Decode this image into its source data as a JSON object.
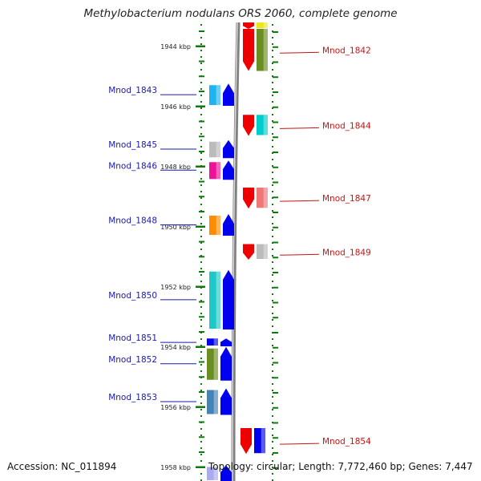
{
  "title": "Methylobacterium nodulans ORS 2060, complete genome",
  "footer": {
    "accession": "Accession: NC_011894",
    "summary": "Topology: circular; Length: 7,772,460 bp; Genes: 7,447"
  },
  "colors": {
    "forward_strand": "#0000ee",
    "reverse_strand": "#ee0000",
    "left_label": "#1a1aaa",
    "right_label": "#cc1111",
    "ruler_tick": "#117711",
    "backbone": "#808080"
  },
  "view": {
    "start_kbp": 1942.46,
    "end_kbp": 1958.46
  },
  "scale": {
    "ticks": [
      {
        "kbp": 1944,
        "label": "1944 kbp"
      },
      {
        "kbp": 1946,
        "label": "1946 kbp"
      },
      {
        "kbp": 1948,
        "label": "1948 kbp"
      },
      {
        "kbp": 1950,
        "label": "1950 kbp"
      },
      {
        "kbp": 1952,
        "label": "1952 kbp"
      },
      {
        "kbp": 1954,
        "label": "1954 kbp"
      },
      {
        "kbp": 1956,
        "label": "1956 kbp"
      },
      {
        "kbp": 1958,
        "label": "1958 kbp"
      }
    ]
  },
  "genes": [
    {
      "name": "",
      "strand": "-",
      "start_kbp": 1942.46,
      "end_kbp": 1943.42,
      "color": "#e8e81a",
      "label_side": "none"
    },
    {
      "name": "Mnod_1842",
      "strand": "-",
      "start_kbp": 1943.42,
      "end_kbp": 1944.82,
      "color": "#6b8e23",
      "label_side": "right"
    },
    {
      "name": "Mnod_1843",
      "strand": "+",
      "start_kbp": 1945.24,
      "end_kbp": 1945.98,
      "color": "#1eb4f0",
      "label_side": "left"
    },
    {
      "name": "Mnod_1844",
      "strand": "-",
      "start_kbp": 1946.28,
      "end_kbp": 1946.98,
      "color": "#00cccc",
      "label_side": "right"
    },
    {
      "name": "Mnod_1845",
      "strand": "+",
      "start_kbp": 1947.12,
      "end_kbp": 1947.72,
      "color": "#bbbbbb",
      "label_side": "left"
    },
    {
      "name": "Mnod_1846",
      "strand": "+",
      "start_kbp": 1947.8,
      "end_kbp": 1948.44,
      "color": "#ee1199",
      "label_side": "left"
    },
    {
      "name": "Mnod_1847",
      "strand": "-",
      "start_kbp": 1948.7,
      "end_kbp": 1949.4,
      "color": "#ee7777",
      "label_side": "right"
    },
    {
      "name": "Mnod_1848",
      "strand": "+",
      "start_kbp": 1949.58,
      "end_kbp": 1950.3,
      "color": "#ff8c00",
      "label_side": "left"
    },
    {
      "name": "Mnod_1849",
      "strand": "-",
      "start_kbp": 1950.58,
      "end_kbp": 1951.1,
      "color": "#bbbbbb",
      "label_side": "right"
    },
    {
      "name": "Mnod_1850",
      "strand": "+",
      "start_kbp": 1951.44,
      "end_kbp": 1953.42,
      "color": "#1ec8c8",
      "label_side": "left"
    },
    {
      "name": "Mnod_1851",
      "strand": "+",
      "start_kbp": 1953.72,
      "end_kbp": 1953.98,
      "color": "#0000ee",
      "label_side": "left"
    },
    {
      "name": "Mnod_1852",
      "strand": "+",
      "start_kbp": 1954.0,
      "end_kbp": 1955.12,
      "color": "#6b8e23",
      "label_side": "left"
    },
    {
      "name": "Mnod_1853",
      "strand": "+",
      "start_kbp": 1955.38,
      "end_kbp": 1956.26,
      "color": "#4682b4",
      "label_side": "left"
    },
    {
      "name": "Mnod_1854",
      "strand": "-",
      "start_kbp": 1956.7,
      "end_kbp": 1957.56,
      "color": "#0000ee",
      "label_side": "right"
    },
    {
      "name": "",
      "strand": "+",
      "start_kbp": 1957.94,
      "end_kbp": 1958.46,
      "color": "#aaaaee",
      "label_side": "none"
    }
  ]
}
